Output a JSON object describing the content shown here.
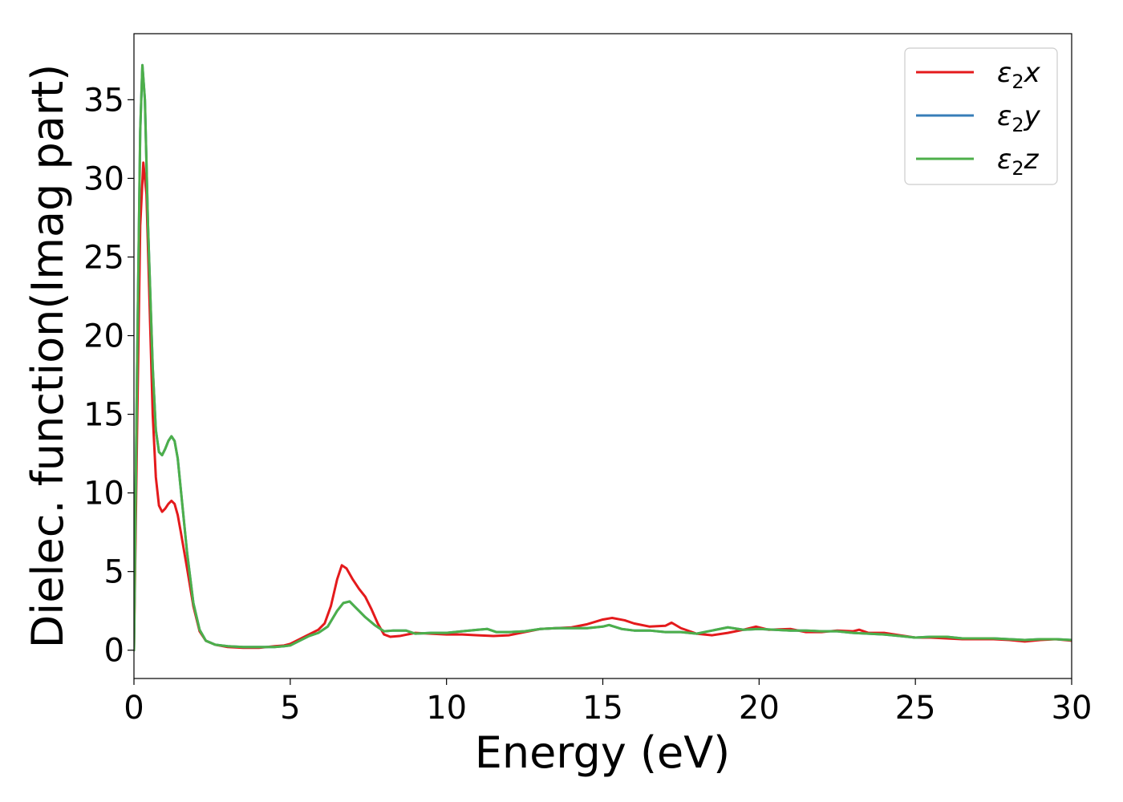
{
  "chart_data": {
    "type": "line",
    "title": "",
    "xlabel": "Energy (eV)",
    "ylabel": "Dielec. function(Imag part)",
    "xlim": [
      0,
      30
    ],
    "ylim": [
      -1.8,
      39.2
    ],
    "xticks": [
      0,
      5,
      10,
      15,
      20,
      25,
      30
    ],
    "yticks": [
      0,
      5,
      10,
      15,
      20,
      25,
      30,
      35
    ],
    "grid": false,
    "legend_position": "top-right",
    "series": [
      {
        "name": "ε2x",
        "legend": {
          "base": "ε",
          "sub": "2",
          "suffix": "x"
        },
        "color": "#e41a1c",
        "points": [
          [
            0,
            0
          ],
          [
            0.1,
            14
          ],
          [
            0.2,
            27
          ],
          [
            0.3,
            31
          ],
          [
            0.4,
            29
          ],
          [
            0.5,
            22
          ],
          [
            0.6,
            15
          ],
          [
            0.7,
            11
          ],
          [
            0.8,
            9.2
          ],
          [
            0.9,
            8.8
          ],
          [
            1.0,
            9.0
          ],
          [
            1.1,
            9.3
          ],
          [
            1.2,
            9.5
          ],
          [
            1.3,
            9.3
          ],
          [
            1.4,
            8.6
          ],
          [
            1.5,
            7.5
          ],
          [
            1.7,
            5.2
          ],
          [
            1.9,
            2.8
          ],
          [
            2.1,
            1.2
          ],
          [
            2.3,
            0.6
          ],
          [
            2.6,
            0.35
          ],
          [
            3,
            0.2
          ],
          [
            3.5,
            0.15
          ],
          [
            4,
            0.15
          ],
          [
            4.5,
            0.25
          ],
          [
            4.8,
            0.3
          ],
          [
            5.0,
            0.4
          ],
          [
            5.3,
            0.7
          ],
          [
            5.6,
            1.0
          ],
          [
            5.9,
            1.3
          ],
          [
            6.1,
            1.7
          ],
          [
            6.3,
            2.8
          ],
          [
            6.5,
            4.5
          ],
          [
            6.65,
            5.4
          ],
          [
            6.8,
            5.2
          ],
          [
            7.0,
            4.5
          ],
          [
            7.2,
            3.9
          ],
          [
            7.4,
            3.4
          ],
          [
            7.6,
            2.6
          ],
          [
            7.8,
            1.7
          ],
          [
            8.0,
            1.0
          ],
          [
            8.2,
            0.85
          ],
          [
            8.5,
            0.9
          ],
          [
            9,
            1.1
          ],
          [
            9.5,
            1.05
          ],
          [
            10,
            1.0
          ],
          [
            10.5,
            1.0
          ],
          [
            11,
            0.95
          ],
          [
            11.5,
            0.9
          ],
          [
            12,
            0.95
          ],
          [
            12.5,
            1.15
          ],
          [
            13,
            1.35
          ],
          [
            13.5,
            1.4
          ],
          [
            14,
            1.45
          ],
          [
            14.5,
            1.65
          ],
          [
            15,
            1.95
          ],
          [
            15.3,
            2.05
          ],
          [
            15.7,
            1.9
          ],
          [
            16,
            1.7
          ],
          [
            16.5,
            1.5
          ],
          [
            17,
            1.55
          ],
          [
            17.2,
            1.75
          ],
          [
            17.5,
            1.4
          ],
          [
            18,
            1.05
          ],
          [
            18.5,
            0.95
          ],
          [
            19,
            1.1
          ],
          [
            19.5,
            1.3
          ],
          [
            19.9,
            1.5
          ],
          [
            20.3,
            1.3
          ],
          [
            21,
            1.35
          ],
          [
            21.5,
            1.15
          ],
          [
            22,
            1.15
          ],
          [
            22.5,
            1.25
          ],
          [
            23,
            1.2
          ],
          [
            23.2,
            1.3
          ],
          [
            23.5,
            1.1
          ],
          [
            24,
            1.1
          ],
          [
            24.5,
            0.95
          ],
          [
            25,
            0.8
          ],
          [
            25.5,
            0.8
          ],
          [
            26,
            0.75
          ],
          [
            26.5,
            0.7
          ],
          [
            27,
            0.7
          ],
          [
            27.5,
            0.7
          ],
          [
            28,
            0.65
          ],
          [
            28.5,
            0.55
          ],
          [
            29,
            0.65
          ],
          [
            29.5,
            0.7
          ],
          [
            30,
            0.6
          ]
        ]
      },
      {
        "name": "ε2y",
        "legend": {
          "base": "ε",
          "sub": "2",
          "suffix": "y"
        },
        "color": "#377eb8",
        "points": [
          [
            0,
            0
          ],
          [
            0.1,
            18
          ],
          [
            0.2,
            33
          ],
          [
            0.27,
            37.2
          ],
          [
            0.35,
            35
          ],
          [
            0.45,
            27
          ],
          [
            0.6,
            18
          ],
          [
            0.7,
            14
          ],
          [
            0.8,
            12.6
          ],
          [
            0.9,
            12.4
          ],
          [
            1.0,
            12.8
          ],
          [
            1.1,
            13.3
          ],
          [
            1.2,
            13.6
          ],
          [
            1.3,
            13.3
          ],
          [
            1.4,
            12.2
          ],
          [
            1.5,
            10.2
          ],
          [
            1.7,
            6.2
          ],
          [
            1.9,
            3.0
          ],
          [
            2.1,
            1.3
          ],
          [
            2.3,
            0.6
          ],
          [
            2.6,
            0.35
          ],
          [
            3,
            0.25
          ],
          [
            3.5,
            0.2
          ],
          [
            4,
            0.2
          ],
          [
            4.5,
            0.2
          ],
          [
            4.8,
            0.25
          ],
          [
            5.0,
            0.3
          ],
          [
            5.3,
            0.6
          ],
          [
            5.6,
            0.9
          ],
          [
            5.9,
            1.1
          ],
          [
            6.2,
            1.5
          ],
          [
            6.5,
            2.5
          ],
          [
            6.7,
            3.0
          ],
          [
            6.9,
            3.1
          ],
          [
            7.1,
            2.7
          ],
          [
            7.4,
            2.1
          ],
          [
            7.7,
            1.6
          ],
          [
            8.0,
            1.2
          ],
          [
            8.3,
            1.25
          ],
          [
            8.7,
            1.25
          ],
          [
            9,
            1.05
          ],
          [
            9.5,
            1.1
          ],
          [
            10,
            1.1
          ],
          [
            10.5,
            1.2
          ],
          [
            11,
            1.3
          ],
          [
            11.3,
            1.35
          ],
          [
            11.6,
            1.15
          ],
          [
            12,
            1.15
          ],
          [
            12.5,
            1.2
          ],
          [
            13,
            1.35
          ],
          [
            13.5,
            1.4
          ],
          [
            14,
            1.4
          ],
          [
            14.5,
            1.4
          ],
          [
            15,
            1.5
          ],
          [
            15.2,
            1.6
          ],
          [
            15.6,
            1.35
          ],
          [
            16,
            1.25
          ],
          [
            16.5,
            1.25
          ],
          [
            17,
            1.15
          ],
          [
            17.5,
            1.15
          ],
          [
            18,
            1.05
          ],
          [
            18.5,
            1.25
          ],
          [
            19,
            1.45
          ],
          [
            19.5,
            1.3
          ],
          [
            20,
            1.35
          ],
          [
            20.5,
            1.3
          ],
          [
            21,
            1.25
          ],
          [
            21.5,
            1.25
          ],
          [
            22,
            1.2
          ],
          [
            22.5,
            1.2
          ],
          [
            23,
            1.1
          ],
          [
            23.5,
            1.05
          ],
          [
            24,
            1.0
          ],
          [
            24.5,
            0.9
          ],
          [
            25,
            0.8
          ],
          [
            25.5,
            0.85
          ],
          [
            26,
            0.85
          ],
          [
            26.5,
            0.75
          ],
          [
            27,
            0.75
          ],
          [
            27.5,
            0.75
          ],
          [
            28,
            0.7
          ],
          [
            28.5,
            0.65
          ],
          [
            29,
            0.7
          ],
          [
            29.5,
            0.7
          ],
          [
            30,
            0.65
          ]
        ]
      },
      {
        "name": "ε2z",
        "legend": {
          "base": "ε",
          "sub": "2",
          "suffix": "z"
        },
        "color": "#4daf4a",
        "points": [
          [
            0,
            0
          ],
          [
            0.1,
            18
          ],
          [
            0.2,
            33
          ],
          [
            0.27,
            37.2
          ],
          [
            0.35,
            35
          ],
          [
            0.45,
            27
          ],
          [
            0.6,
            18
          ],
          [
            0.7,
            14
          ],
          [
            0.8,
            12.6
          ],
          [
            0.9,
            12.4
          ],
          [
            1.0,
            12.8
          ],
          [
            1.1,
            13.3
          ],
          [
            1.2,
            13.6
          ],
          [
            1.3,
            13.3
          ],
          [
            1.4,
            12.2
          ],
          [
            1.5,
            10.2
          ],
          [
            1.7,
            6.2
          ],
          [
            1.9,
            3.0
          ],
          [
            2.1,
            1.3
          ],
          [
            2.3,
            0.6
          ],
          [
            2.6,
            0.35
          ],
          [
            3,
            0.25
          ],
          [
            3.5,
            0.2
          ],
          [
            4,
            0.2
          ],
          [
            4.5,
            0.2
          ],
          [
            4.8,
            0.25
          ],
          [
            5.0,
            0.3
          ],
          [
            5.3,
            0.6
          ],
          [
            5.6,
            0.9
          ],
          [
            5.9,
            1.1
          ],
          [
            6.2,
            1.5
          ],
          [
            6.5,
            2.5
          ],
          [
            6.7,
            3.0
          ],
          [
            6.9,
            3.1
          ],
          [
            7.1,
            2.7
          ],
          [
            7.4,
            2.1
          ],
          [
            7.7,
            1.6
          ],
          [
            8.0,
            1.2
          ],
          [
            8.3,
            1.25
          ],
          [
            8.7,
            1.25
          ],
          [
            9,
            1.05
          ],
          [
            9.5,
            1.1
          ],
          [
            10,
            1.1
          ],
          [
            10.5,
            1.2
          ],
          [
            11,
            1.3
          ],
          [
            11.3,
            1.35
          ],
          [
            11.6,
            1.15
          ],
          [
            12,
            1.15
          ],
          [
            12.5,
            1.2
          ],
          [
            13,
            1.35
          ],
          [
            13.5,
            1.4
          ],
          [
            14,
            1.4
          ],
          [
            14.5,
            1.4
          ],
          [
            15,
            1.5
          ],
          [
            15.2,
            1.6
          ],
          [
            15.6,
            1.35
          ],
          [
            16,
            1.25
          ],
          [
            16.5,
            1.25
          ],
          [
            17,
            1.15
          ],
          [
            17.5,
            1.15
          ],
          [
            18,
            1.05
          ],
          [
            18.5,
            1.25
          ],
          [
            19,
            1.45
          ],
          [
            19.5,
            1.3
          ],
          [
            20,
            1.35
          ],
          [
            20.5,
            1.3
          ],
          [
            21,
            1.25
          ],
          [
            21.5,
            1.25
          ],
          [
            22,
            1.2
          ],
          [
            22.5,
            1.2
          ],
          [
            23,
            1.1
          ],
          [
            23.5,
            1.05
          ],
          [
            24,
            1.0
          ],
          [
            24.5,
            0.9
          ],
          [
            25,
            0.8
          ],
          [
            25.5,
            0.85
          ],
          [
            26,
            0.85
          ],
          [
            26.5,
            0.75
          ],
          [
            27,
            0.75
          ],
          [
            27.5,
            0.75
          ],
          [
            28,
            0.7
          ],
          [
            28.5,
            0.65
          ],
          [
            29,
            0.7
          ],
          [
            29.5,
            0.7
          ],
          [
            30,
            0.65
          ]
        ]
      }
    ]
  }
}
